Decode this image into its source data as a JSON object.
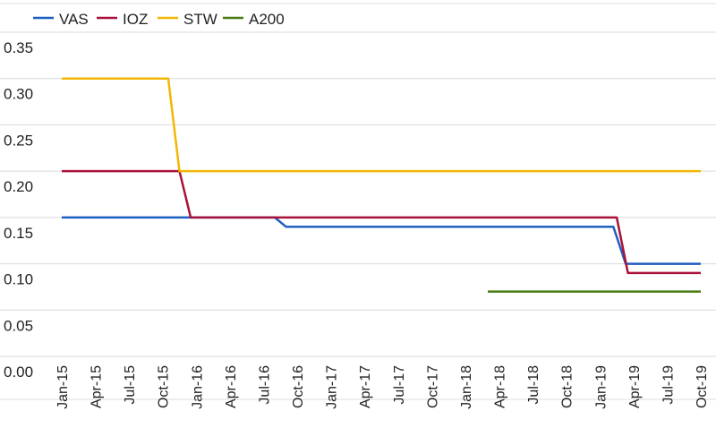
{
  "chart_data": {
    "type": "line",
    "title": "",
    "xlabel": "",
    "ylabel": "",
    "ylim": [
      0,
      0.35
    ],
    "yticks": [
      "0.00",
      "0.05",
      "0.10",
      "0.15",
      "0.20",
      "0.25",
      "0.30",
      "0.35"
    ],
    "x_tick_labels": [
      "Jan-15",
      "Apr-15",
      "Jul-15",
      "Oct-15",
      "Jan-16",
      "Apr-16",
      "Jul-16",
      "Oct-16",
      "Jan-17",
      "Apr-17",
      "Jul-17",
      "Oct-17",
      "Jan-18",
      "Apr-18",
      "Jul-18",
      "Oct-18",
      "Jan-19",
      "Apr-19",
      "Jul-19",
      "Oct-19"
    ],
    "x_unit": "months since Jan-15",
    "grid": true,
    "legend_position": "top-left",
    "series": [
      {
        "name": "VAS",
        "color": "#1f5fbf",
        "x": [
          0,
          19,
          20,
          49.2,
          50.3,
          57
        ],
        "y": [
          0.15,
          0.15,
          0.14,
          0.14,
          0.1,
          0.1
        ]
      },
      {
        "name": "IOZ",
        "color": "#a8123a",
        "x": [
          0,
          10.5,
          11.5,
          49.5,
          50.5,
          57
        ],
        "y": [
          0.2,
          0.2,
          0.15,
          0.15,
          0.09,
          0.09
        ]
      },
      {
        "name": "STW",
        "color": "#f2b705",
        "x": [
          0,
          9.5,
          10.5,
          57
        ],
        "y": [
          0.3,
          0.3,
          0.2,
          0.2
        ]
      },
      {
        "name": "A200",
        "color": "#4a7c12",
        "x": [
          38,
          57
        ],
        "y": [
          0.07,
          0.07
        ]
      }
    ]
  }
}
